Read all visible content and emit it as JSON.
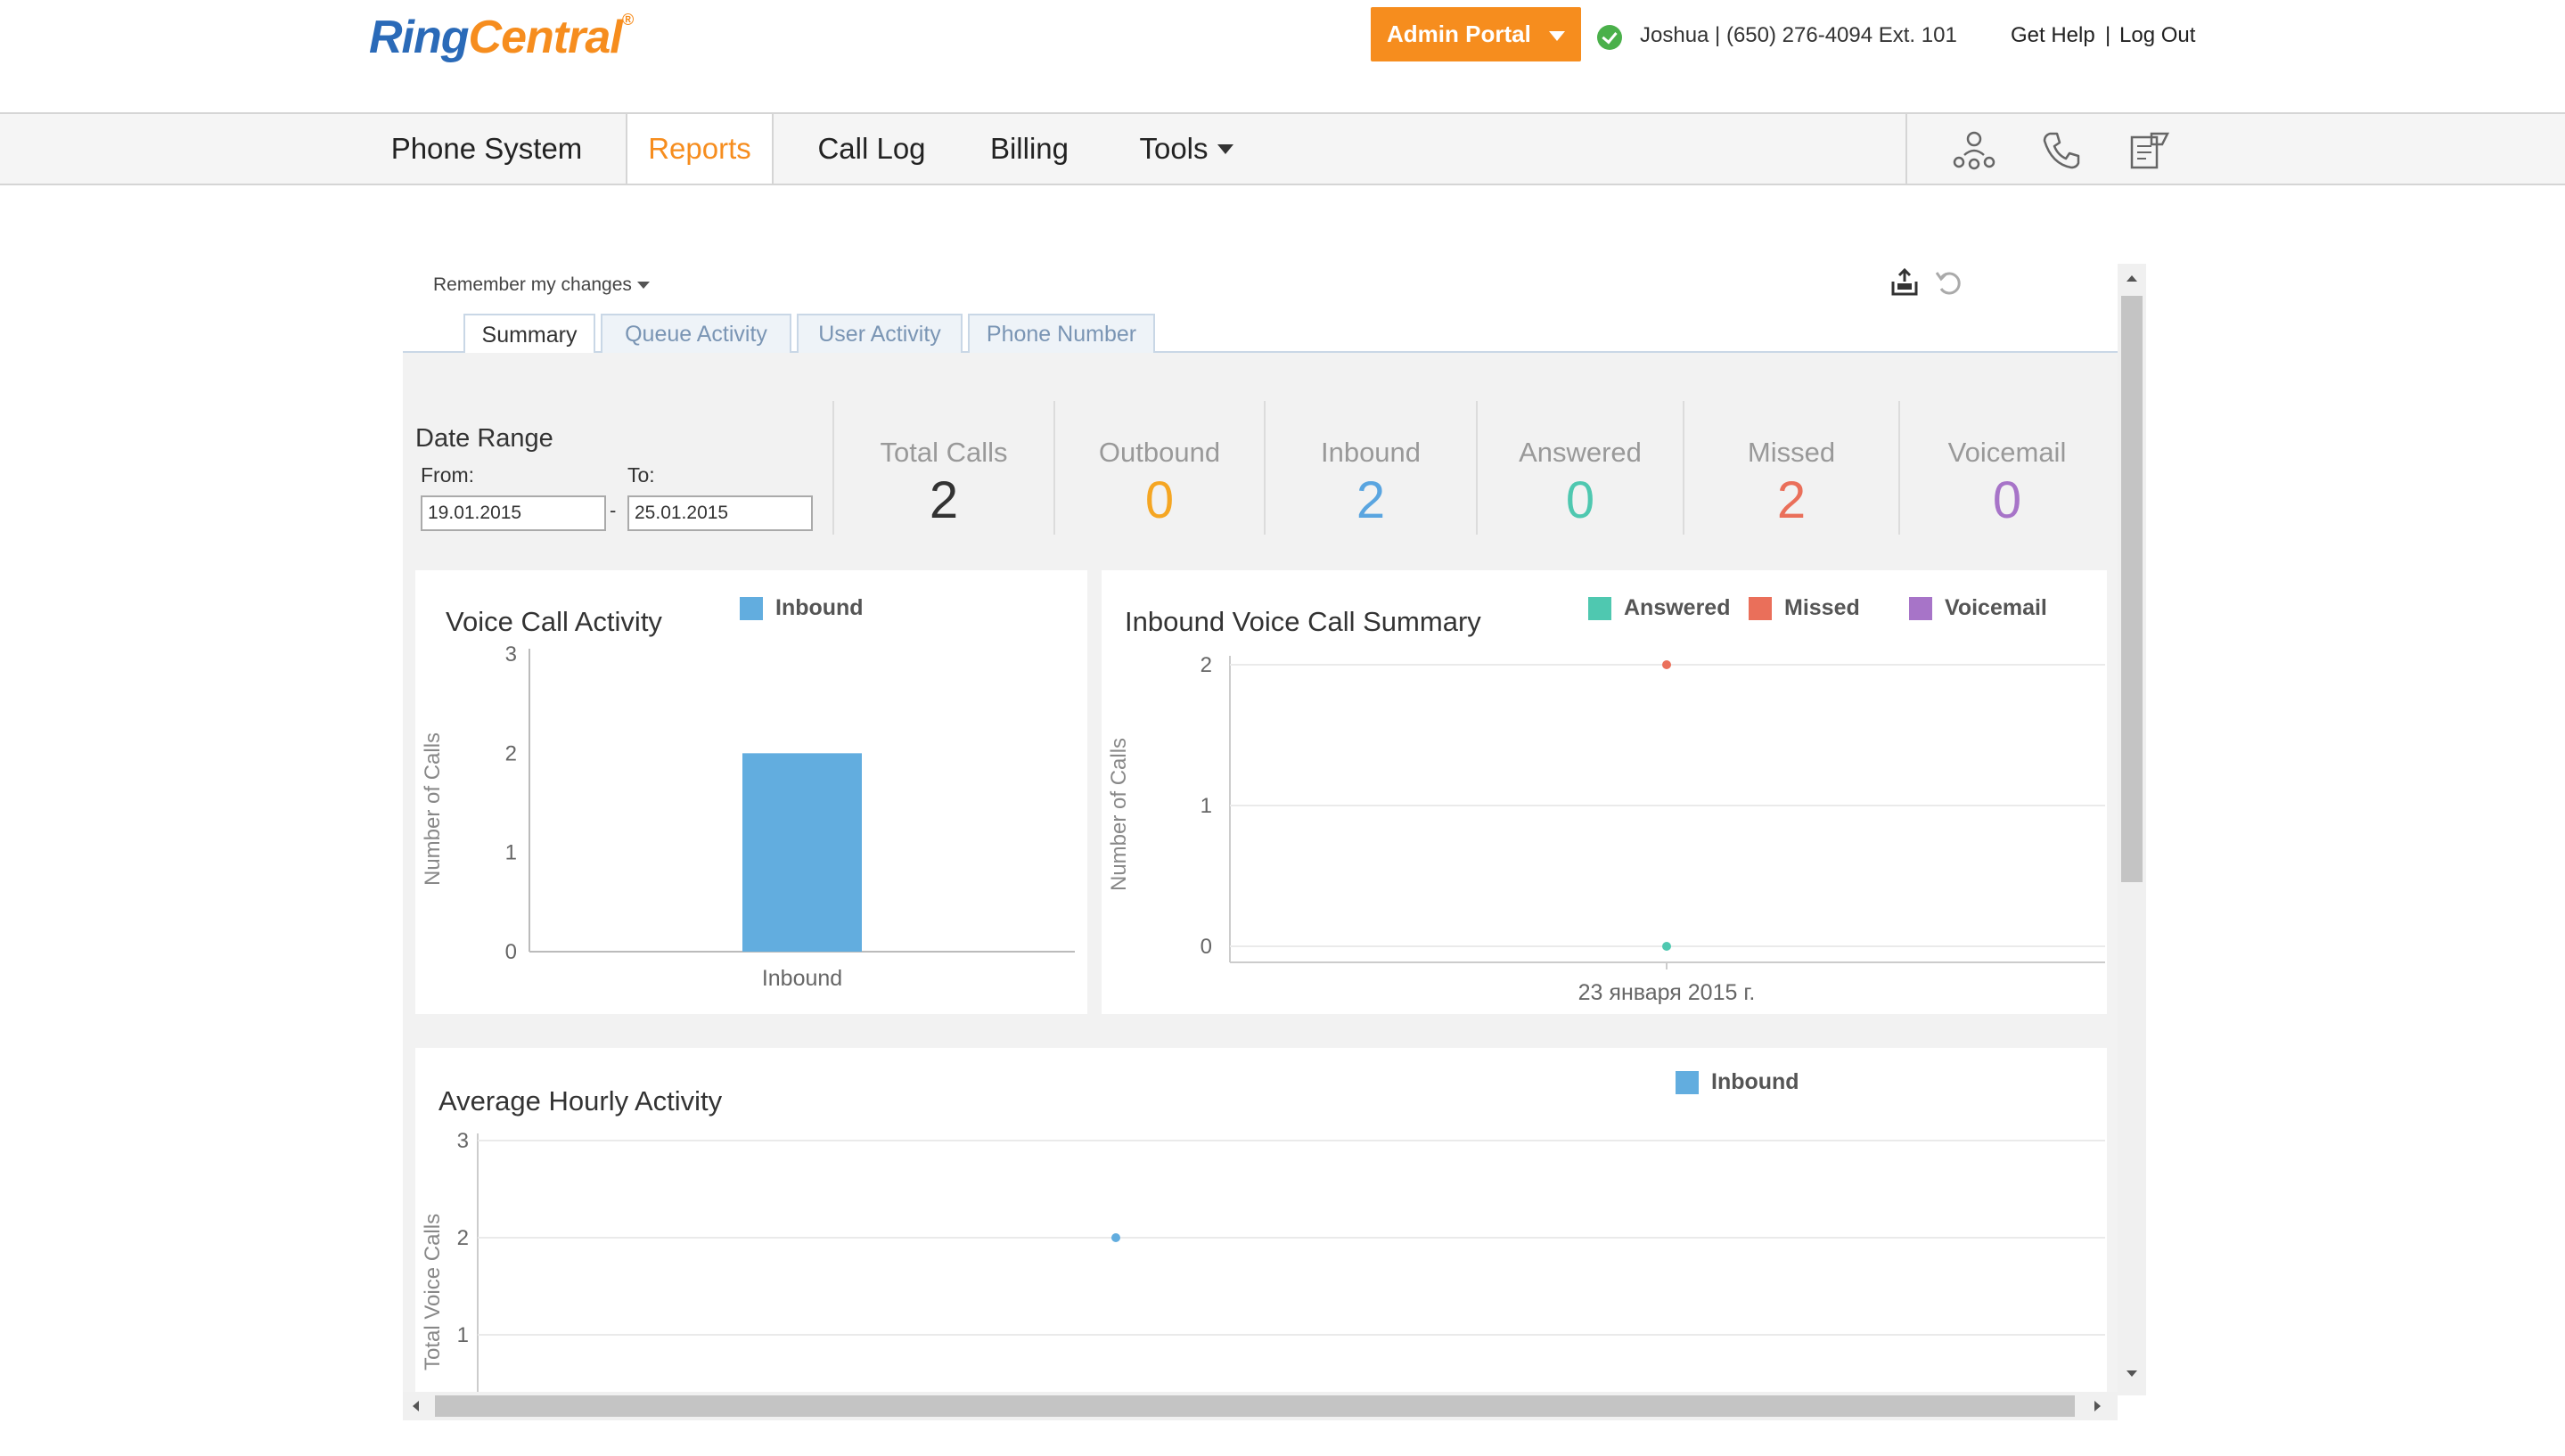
{
  "brand": {
    "logo_part1": "Ring",
    "logo_part2": "Central",
    "logo_mark": "®"
  },
  "header": {
    "admin_portal": "Admin Portal",
    "user_info": "Joshua | (650) 276-4094 Ext. 101",
    "get_help": "Get Help",
    "separator": "|",
    "log_out": "Log Out"
  },
  "nav": {
    "items": [
      {
        "label": "Phone System"
      },
      {
        "label": "Reports"
      },
      {
        "label": "Call Log"
      },
      {
        "label": "Billing"
      },
      {
        "label": "Tools"
      }
    ],
    "icons": [
      "org-chart-icon",
      "phone-icon",
      "fax-icon"
    ]
  },
  "report": {
    "remember": "Remember my changes",
    "tabs": [
      "Summary",
      "Queue Activity",
      "User Activity",
      "Phone Number"
    ],
    "date_range": {
      "title": "Date Range",
      "from_label": "From:",
      "to_label": "To:",
      "from": "19.01.2015",
      "to": "25.01.2015",
      "dash": "-"
    },
    "stats": [
      {
        "label": "Total Calls",
        "value": "2",
        "color": "#333333"
      },
      {
        "label": "Outbound",
        "value": "0",
        "color": "#f5a623"
      },
      {
        "label": "Inbound",
        "value": "2",
        "color": "#5aa5e0"
      },
      {
        "label": "Answered",
        "value": "0",
        "color": "#4fc8b0"
      },
      {
        "label": "Missed",
        "value": "2",
        "color": "#ea6f5a"
      },
      {
        "label": "Voicemail",
        "value": "0",
        "color": "#a774c8"
      }
    ]
  },
  "chart_data": [
    {
      "type": "bar",
      "title": "Voice Call Activity",
      "ylabel": "Number of Calls",
      "categories": [
        "Inbound"
      ],
      "series": [
        {
          "name": "Inbound",
          "values": [
            2
          ],
          "color": "#62addf"
        }
      ],
      "yticks": [
        "0",
        "1",
        "2",
        "3"
      ],
      "ylim": [
        0,
        3
      ]
    },
    {
      "type": "scatter",
      "title": "Inbound Voice Call Summary",
      "ylabel": "Number of Calls",
      "categories": [
        "23 января 2015 г."
      ],
      "series": [
        {
          "name": "Answered",
          "values": [
            0
          ],
          "color": "#4fc8b0"
        },
        {
          "name": "Missed",
          "values": [
            2
          ],
          "color": "#ea6f5a"
        },
        {
          "name": "Voicemail",
          "values": [
            null
          ],
          "color": "#a774c8"
        }
      ],
      "yticks": [
        "0",
        "1",
        "2"
      ],
      "ylim": [
        0,
        2
      ]
    },
    {
      "type": "scatter",
      "title": "Average Hourly Activity",
      "ylabel": "Total Voice Calls",
      "series": [
        {
          "name": "Inbound",
          "values": [
            2
          ],
          "color": "#62addf"
        }
      ],
      "yticks": [
        "1",
        "2",
        "3"
      ],
      "ylim": [
        1,
        3
      ]
    }
  ]
}
